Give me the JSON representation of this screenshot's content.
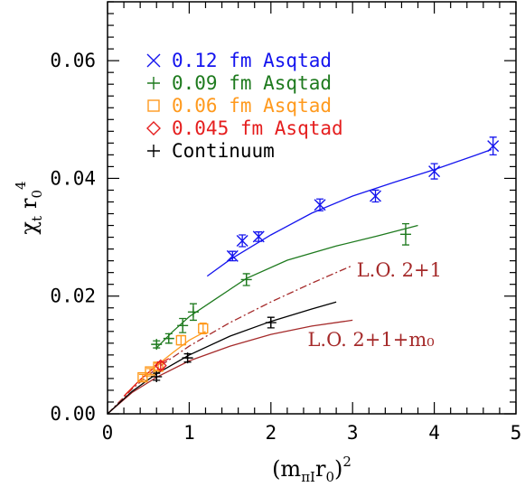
{
  "chart_data": {
    "type": "scatter",
    "title": "",
    "xlabel": "(mπI r0)²",
    "ylabel": "χt r0⁴",
    "xlim": [
      0,
      5
    ],
    "ylim": [
      0,
      0.07
    ],
    "x_ticks": [
      "0",
      "1",
      "2",
      "3",
      "4",
      "5"
    ],
    "y_ticks": [
      "0.00",
      "0.02",
      "0.04",
      "0.06"
    ],
    "grid": false,
    "legend_position": "top-left",
    "colors": {
      "blue": "#1414ee",
      "green": "#1e7a1e",
      "orange": "#ff9a1e",
      "red": "#e51e1e",
      "black": "#000000",
      "brown": "#a52a2a"
    },
    "series": [
      {
        "name": "0.12 fm Asqtad",
        "legend_label": "0.12 fm Asqtad",
        "marker": "x",
        "color": "#1414ee",
        "x": [
          1.53,
          1.65,
          1.85,
          2.6,
          3.28,
          4.0,
          4.72
        ],
        "y": [
          0.0268,
          0.0294,
          0.0301,
          0.0355,
          0.037,
          0.0412,
          0.0455
        ],
        "yerr": [
          0.0008,
          0.001,
          0.0008,
          0.001,
          0.001,
          0.0013,
          0.0015
        ],
        "fit_x": [
          1.22,
          1.5,
          2.0,
          2.5,
          3.0,
          3.5,
          4.0,
          4.5,
          4.7
        ],
        "fit_y": [
          0.0234,
          0.0262,
          0.0304,
          0.0341,
          0.037,
          0.0393,
          0.0415,
          0.0439,
          0.0449
        ]
      },
      {
        "name": "0.09 fm Asqtad",
        "legend_label": "0.09 fm Asqtad",
        "marker": "+",
        "color": "#1e7a1e",
        "x": [
          0.6,
          0.75,
          0.92,
          1.05,
          1.7,
          3.65
        ],
        "y": [
          0.0118,
          0.0128,
          0.015,
          0.0173,
          0.0228,
          0.0305
        ],
        "yerr": [
          0.0006,
          0.0008,
          0.0012,
          0.0014,
          0.001,
          0.0018
        ],
        "fit_x": [
          0.6,
          0.8,
          1.0,
          1.3,
          1.7,
          2.2,
          2.8,
          3.3,
          3.8
        ],
        "fit_y": [
          0.0112,
          0.014,
          0.0165,
          0.0193,
          0.023,
          0.0261,
          0.0285,
          0.0302,
          0.032
        ]
      },
      {
        "name": "0.06 fm Asqtad",
        "legend_label": "0.06 fm Asqtad",
        "marker": "square",
        "color": "#ff9a1e",
        "x": [
          0.43,
          0.52,
          0.62,
          0.9,
          1.17
        ],
        "y": [
          0.0062,
          0.0072,
          0.008,
          0.0125,
          0.0145
        ],
        "yerr": [
          0.0005,
          0.0005,
          0.0006,
          0.0008,
          0.0009
        ],
        "fit_x": [
          0.22,
          0.4,
          0.6,
          0.8,
          1.0,
          1.2
        ],
        "fit_y": [
          0.0033,
          0.0058,
          0.0082,
          0.0104,
          0.0125,
          0.014
        ]
      },
      {
        "name": "0.045 fm Asqtad",
        "legend_label": "0.045 fm Asqtad",
        "marker": "diamond",
        "color": "#e51e1e",
        "x": [
          0.65
        ],
        "y": [
          0.0082
        ],
        "yerr": [
          0.0006
        ],
        "fit_x": [
          0.2,
          0.4,
          0.6,
          0.75
        ],
        "fit_y": [
          0.003,
          0.0058,
          0.0082,
          0.0094
        ]
      },
      {
        "name": "Continuum",
        "legend_label": "Continuum",
        "marker": "+",
        "color": "#000000",
        "x": [
          0.6,
          0.98,
          2.0
        ],
        "y": [
          0.0063,
          0.0095,
          0.0155
        ],
        "yerr": [
          0.0006,
          0.0007,
          0.0009
        ],
        "fit_x": [
          0.0,
          0.3,
          0.6,
          1.0,
          1.5,
          2.0,
          2.5,
          2.8
        ],
        "fit_y": [
          0.0,
          0.0038,
          0.0068,
          0.01,
          0.0132,
          0.0157,
          0.0178,
          0.019
        ]
      }
    ],
    "curves": [
      {
        "label": "L.O. 2+1",
        "color": "#a52a2a",
        "style": "dash-dot",
        "x": [
          0.0,
          0.3,
          0.6,
          1.0,
          1.5,
          2.0,
          2.5,
          3.0
        ],
        "y": [
          0.0,
          0.0042,
          0.0077,
          0.0115,
          0.0155,
          0.019,
          0.0222,
          0.0252
        ]
      },
      {
        "label": "L.O. 2+1+m0",
        "color": "#a52a2a",
        "style": "solid",
        "x": [
          0.0,
          0.3,
          0.6,
          1.0,
          1.5,
          2.0,
          2.5,
          3.0
        ],
        "y": [
          0.0,
          0.0036,
          0.0062,
          0.009,
          0.0115,
          0.0135,
          0.0149,
          0.0159
        ]
      }
    ],
    "annotations": [
      {
        "text": "L.O. 2+1",
        "x": 3.05,
        "y": 0.0233,
        "color": "#a52a2a"
      },
      {
        "text": "L.O. 2+1+m₀",
        "x": 2.45,
        "y": 0.0115,
        "color": "#a52a2a"
      }
    ]
  }
}
